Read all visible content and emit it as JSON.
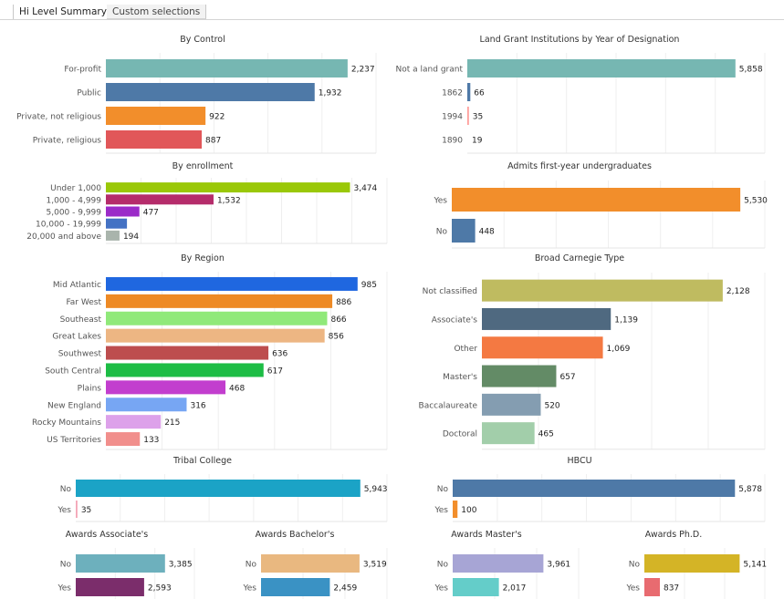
{
  "tabs": [
    {
      "label": "Hi Level Summary",
      "active": true
    },
    {
      "label": "Custom selections",
      "active": false
    }
  ],
  "chart_data": [
    {
      "id": "by-control",
      "type": "bar",
      "orientation": "horizontal",
      "title": "By Control",
      "categories": [
        "For-profit",
        "Public",
        "Private, not religious",
        "Private, religious"
      ],
      "values": [
        2237,
        1932,
        922,
        887
      ],
      "labels": [
        "2,237",
        "1,932",
        "922",
        "887"
      ],
      "colors": [
        "#76b7b2",
        "#4e79a7",
        "#f28e2b",
        "#e15759"
      ],
      "xlim": [
        0,
        2500
      ],
      "grid": true
    },
    {
      "id": "land-grant",
      "type": "bar",
      "orientation": "horizontal",
      "title": "Land Grant Institutions by Year of Designation",
      "categories": [
        "Not a land grant",
        "1862",
        "1994",
        "1890"
      ],
      "values": [
        5858,
        66,
        35,
        19
      ],
      "labels": [
        "5,858",
        "66",
        "35",
        "19"
      ],
      "colors": [
        "#76b7b2",
        "#4e79a7",
        "#ff9d9a",
        "#ffffff"
      ],
      "xlim": [
        0,
        6500
      ],
      "grid": true
    },
    {
      "id": "by-enrollment",
      "type": "bar",
      "orientation": "horizontal",
      "title": "By enrollment",
      "categories": [
        "Under 1,000",
        "1,000 - 4,999",
        "5,000 - 9,999",
        "10,000 - 19,999",
        "20,000 and above"
      ],
      "values": [
        3474,
        1532,
        477,
        300,
        194
      ],
      "labels": [
        "3,474",
        "1,532",
        "477",
        "",
        "194"
      ],
      "colors": [
        "#9ac808",
        "#b52c6b",
        "#9b2bc8",
        "#4472c4",
        "#a9b4ac"
      ],
      "xlim": [
        0,
        4000
      ],
      "grid": true
    },
    {
      "id": "admits-first-year",
      "type": "bar",
      "orientation": "horizontal",
      "title": "Admits first-year undergraduates",
      "categories": [
        "Yes",
        "No"
      ],
      "values": [
        5530,
        448
      ],
      "labels": [
        "5,530",
        "448"
      ],
      "colors": [
        "#f28e2b",
        "#4e79a7"
      ],
      "xlim": [
        0,
        6000
      ],
      "grid": true
    },
    {
      "id": "by-region",
      "type": "bar",
      "orientation": "horizontal",
      "title": "By Region",
      "categories": [
        "Mid Atlantic",
        "Far West",
        "Southeast",
        "Great Lakes",
        "Southwest",
        "South Central",
        "Plains",
        "New England",
        "Rocky Mountains",
        "US Territories"
      ],
      "values": [
        985,
        886,
        866,
        856,
        636,
        617,
        468,
        316,
        215,
        133
      ],
      "labels": [
        "985",
        "886",
        "866",
        "856",
        "636",
        "617",
        "468",
        "316",
        "215",
        "133"
      ],
      "colors": [
        "#1f67e0",
        "#ee8a25",
        "#90e97a",
        "#edb683",
        "#bd4d4e",
        "#1dbd45",
        "#c23ece",
        "#77a6f3",
        "#dda1ea",
        "#f18f8c"
      ],
      "xlim": [
        0,
        1100
      ],
      "grid": true
    },
    {
      "id": "carnegie",
      "type": "bar",
      "orientation": "horizontal",
      "title": "Broad Carnegie Type",
      "categories": [
        "Not classified",
        "Associate's",
        "Other",
        "Master's",
        "Baccalaureate",
        "Doctoral"
      ],
      "values": [
        2128,
        1139,
        1069,
        657,
        520,
        465
      ],
      "labels": [
        "2,128",
        "1,139",
        "1,069",
        "657",
        "520",
        "465"
      ],
      "colors": [
        "#bfbb60",
        "#4f6980",
        "#f47942",
        "#638b66",
        "#849db1",
        "#a2ceaa"
      ],
      "xlim": [
        0,
        2500
      ],
      "grid": true
    },
    {
      "id": "tribal-college",
      "type": "bar",
      "orientation": "horizontal",
      "title": "Tribal College",
      "categories": [
        "No",
        "Yes"
      ],
      "values": [
        5943,
        35
      ],
      "labels": [
        "5,943",
        "35"
      ],
      "colors": [
        "#1ba3c6",
        "#f4a6b7"
      ],
      "xlim": [
        0,
        6500
      ],
      "grid": true
    },
    {
      "id": "hbcu",
      "type": "bar",
      "orientation": "horizontal",
      "title": "HBCU",
      "categories": [
        "No",
        "Yes"
      ],
      "values": [
        5878,
        100
      ],
      "labels": [
        "5,878",
        "100"
      ],
      "colors": [
        "#4e79a7",
        "#f28e2b"
      ],
      "xlim": [
        0,
        6500
      ],
      "grid": true
    },
    {
      "id": "awards-associates",
      "type": "bar",
      "orientation": "horizontal",
      "title": "Awards Associate's",
      "categories": [
        "No",
        "Yes"
      ],
      "values": [
        3385,
        2593
      ],
      "labels": [
        "3,385",
        "2,593"
      ],
      "colors": [
        "#6db0bd",
        "#7b2d6b"
      ],
      "xlim": [
        0,
        4500
      ],
      "grid": true
    },
    {
      "id": "awards-bachelors",
      "type": "bar",
      "orientation": "horizontal",
      "title": "Awards Bachelor's",
      "categories": [
        "No",
        "Yes"
      ],
      "values": [
        3519,
        2459
      ],
      "labels": [
        "3,519",
        "2,459"
      ],
      "colors": [
        "#e9b880",
        "#3a92c4"
      ],
      "xlim": [
        0,
        4500
      ],
      "grid": true
    },
    {
      "id": "awards-masters",
      "type": "bar",
      "orientation": "horizontal",
      "title": "Awards Master's",
      "categories": [
        "No",
        "Yes"
      ],
      "values": [
        3961,
        2017
      ],
      "labels": [
        "3,961",
        "2,017"
      ],
      "colors": [
        "#a7a5d5",
        "#64cdc9"
      ],
      "xlim": [
        0,
        5500
      ],
      "grid": true
    },
    {
      "id": "awards-phd",
      "type": "bar",
      "orientation": "horizontal",
      "title": "Awards Ph.D.",
      "categories": [
        "No",
        "Yes"
      ],
      "values": [
        5141,
        837
      ],
      "labels": [
        "5,141",
        "837"
      ],
      "colors": [
        "#d4b426",
        "#e86b70"
      ],
      "xlim": [
        0,
        6500
      ],
      "grid": true
    }
  ]
}
